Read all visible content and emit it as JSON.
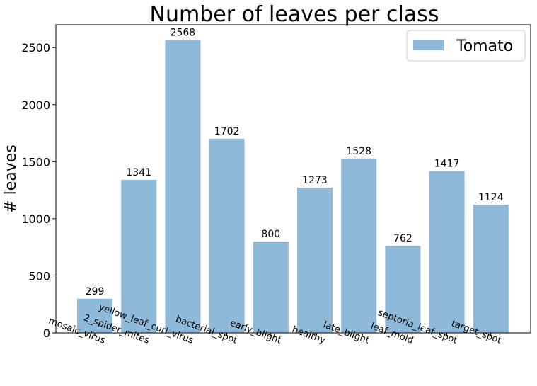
{
  "chart_data": {
    "type": "bar",
    "title": "Number of leaves per class",
    "xlabel": "",
    "ylabel": "# leaves",
    "categories": [
      "mosaic_virus",
      "2_spider_mites",
      "yellow_leaf_curl_virus",
      "bacterial_spot",
      "early_blight",
      "healthy",
      "late_blight",
      "leaf_mold",
      "septoria_leaf_spot",
      "target_spot"
    ],
    "series": [
      {
        "name": "Tomato",
        "color": "#8fb9d9",
        "values": [
          299,
          1341,
          2568,
          1702,
          800,
          1273,
          1528,
          762,
          1417,
          1124
        ]
      }
    ],
    "ylim": [
      0,
      2700
    ],
    "yticks": [
      0,
      500,
      1000,
      1500,
      2000,
      2500
    ],
    "ytick_labels": [
      "0",
      "500",
      "1000",
      "1500",
      "2000",
      "2500"
    ],
    "data_labels": [
      "299",
      "1341",
      "2568",
      "1702",
      "800",
      "1273",
      "1528",
      "762",
      "1417",
      "1124"
    ],
    "grid": false,
    "legend_position": "top-right"
  }
}
